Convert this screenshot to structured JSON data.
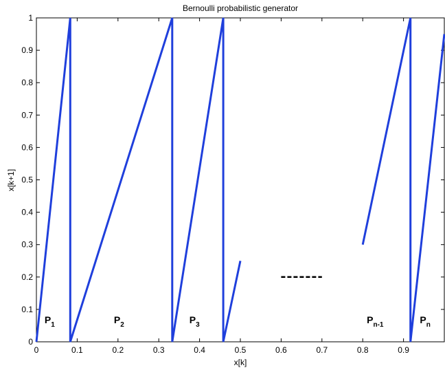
{
  "chart_data": {
    "type": "line",
    "title": "Bernoulli probabilistic generator",
    "xlabel": "x[k]",
    "ylabel": "x[k+1]",
    "xlim": [
      0,
      1
    ],
    "ylim": [
      0,
      1
    ],
    "grid": false,
    "line_color": "#1f3fdc",
    "x_ticks": [
      0,
      0.1,
      0.2,
      0.3,
      0.4,
      0.5,
      0.6,
      0.7,
      0.8,
      0.9
    ],
    "x_tick_labels": [
      "0",
      "0.1",
      "0.2",
      "0.3",
      "0.4",
      "0.5",
      "0.6",
      "0.7",
      "0.8",
      "0.9"
    ],
    "y_ticks": [
      0,
      0.1,
      0.2,
      0.3,
      0.4,
      0.5,
      0.6,
      0.7,
      0.8,
      0.9,
      1
    ],
    "y_tick_labels": [
      "0",
      "0.1",
      "0.2",
      "0.3",
      "0.4",
      "0.5",
      "0.6",
      "0.7",
      "0.8",
      "0.9",
      "1"
    ],
    "series": [
      {
        "x": [
          0,
          0.083,
          0.083,
          0.083,
          0.333,
          0.333,
          0.333,
          0.458,
          0.458,
          0.458,
          0.5
        ],
        "y": [
          0,
          1,
          0.5,
          0,
          1,
          0.5,
          0,
          1,
          0.5,
          0,
          0.25
        ]
      },
      {
        "x": [
          0.8,
          0.917,
          0.917,
          0.917,
          1.0
        ],
        "y": [
          0.3,
          1,
          0.5,
          0,
          0.95
        ]
      }
    ],
    "dashed_segment": {
      "x": [
        0.6,
        0.7
      ],
      "y": [
        0.2,
        0.2
      ],
      "color": "#000000"
    },
    "region_labels": [
      {
        "base": "P",
        "sub": "1",
        "x": 0.02,
        "y": 0.04
      },
      {
        "base": "P",
        "sub": "2",
        "x": 0.19,
        "y": 0.04
      },
      {
        "base": "P",
        "sub": "3",
        "x": 0.375,
        "y": 0.04
      },
      {
        "base": "P",
        "sub": "n-1",
        "x": 0.81,
        "y": 0.04
      },
      {
        "base": "P",
        "sub": "n",
        "x": 0.94,
        "y": 0.04
      }
    ]
  }
}
